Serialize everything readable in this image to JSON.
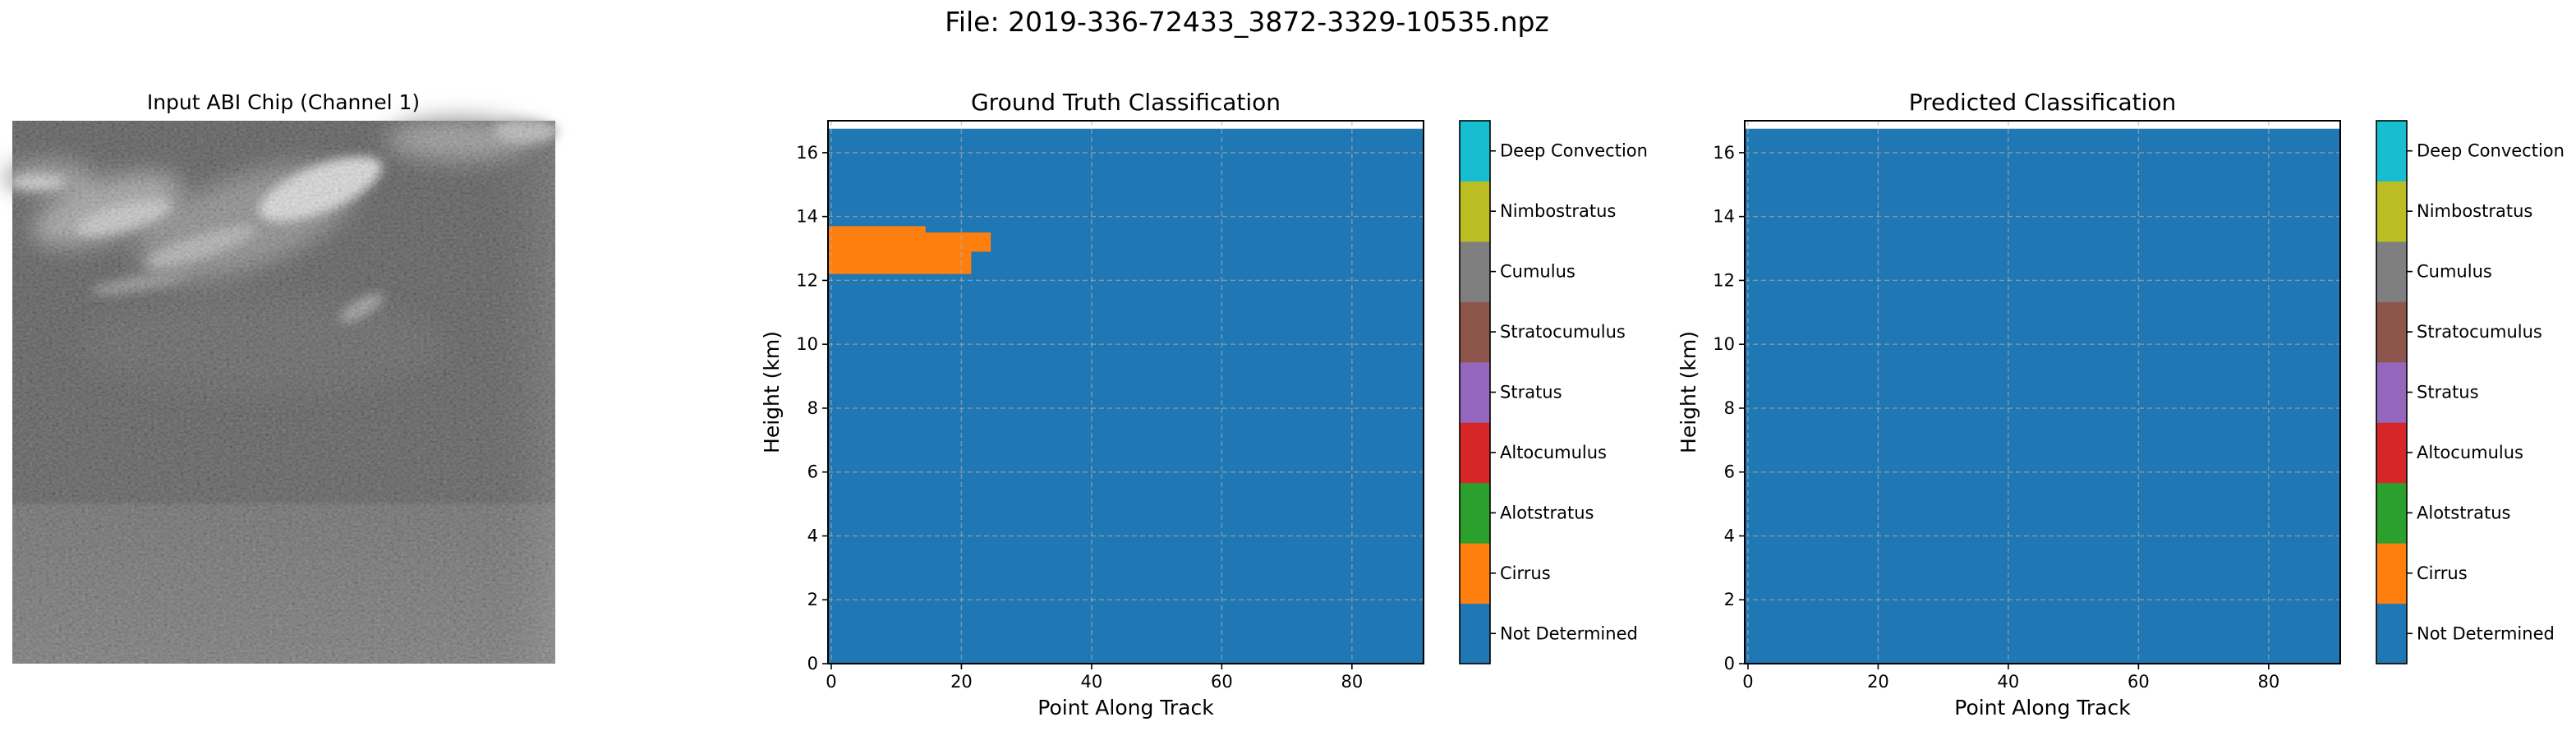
{
  "suptitle": "File: 2019-336-72433_3872-3329-10535.npz",
  "input_panel": {
    "title": "Input ABI Chip (Channel 1)"
  },
  "chart_data": [
    {
      "type": "heatmap",
      "title": "Ground Truth Classification",
      "xlabel": "Point Along Track",
      "ylabel": "Height (km)",
      "xlim": [
        -0.5,
        91
      ],
      "ylim": [
        0,
        17
      ],
      "xticks": [
        0,
        20,
        40,
        60,
        80
      ],
      "yticks": [
        0,
        2,
        4,
        6,
        8,
        10,
        12,
        14,
        16
      ],
      "grid": true,
      "data_top_km": 16.75,
      "background_class": "Not Determined",
      "regions": [
        {
          "class": "Cirrus",
          "x": [
            -0.5,
            14.5
          ],
          "y": [
            13.5,
            13.7
          ]
        },
        {
          "class": "Cirrus",
          "x": [
            -0.5,
            24.5
          ],
          "y": [
            12.9,
            13.5
          ]
        },
        {
          "class": "Cirrus",
          "x": [
            -0.5,
            21.5
          ],
          "y": [
            12.2,
            12.9
          ]
        }
      ]
    },
    {
      "type": "heatmap",
      "title": "Predicted Classification",
      "xlabel": "Point Along Track",
      "ylabel": "Height (km)",
      "xlim": [
        -0.5,
        91
      ],
      "ylim": [
        0,
        17
      ],
      "xticks": [
        0,
        20,
        40,
        60,
        80
      ],
      "yticks": [
        0,
        2,
        4,
        6,
        8,
        10,
        12,
        14,
        16
      ],
      "grid": true,
      "data_top_km": 16.75,
      "background_class": "Not Determined",
      "regions": []
    }
  ],
  "colorbar": {
    "classes": [
      {
        "label": "Not Determined",
        "color": "#1f77b4"
      },
      {
        "label": "Cirrus",
        "color": "#ff7f0e"
      },
      {
        "label": "Alotstratus",
        "color": "#2ca02c"
      },
      {
        "label": "Altocumulus",
        "color": "#d62728"
      },
      {
        "label": "Stratus",
        "color": "#9467bd"
      },
      {
        "label": "Stratocumulus",
        "color": "#8c564b"
      },
      {
        "label": "Cumulus",
        "color": "#7f7f7f"
      },
      {
        "label": "Nimbostratus",
        "color": "#bcbd22"
      },
      {
        "label": "Deep Convection",
        "color": "#17becf"
      }
    ]
  }
}
